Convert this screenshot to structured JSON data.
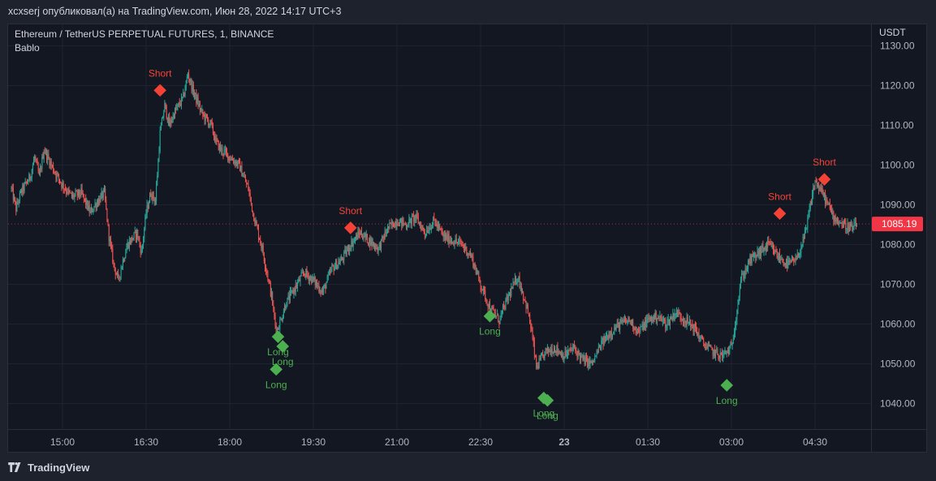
{
  "header": {
    "publish_line": "xcxserj опубликовал(а) на TradingView.com, Июн 28, 2022 14:17 UTC+3"
  },
  "legend": {
    "symbol": "Ethereum / TetherUS PERPETUAL FUTURES, 1, BINANCE",
    "indicator": "Bablo"
  },
  "footer": {
    "brand": "TradingView"
  },
  "colors": {
    "up": "#26a69a",
    "down": "#ef5350",
    "long": "#4caf50",
    "short": "#f44336",
    "price_tag": "#f23645"
  },
  "chart_data": {
    "type": "candlestick",
    "ylabel": "USDT",
    "ylim": [
      1033,
      1131
    ],
    "y_ticks": [
      "1130.00",
      "1120.00",
      "1110.00",
      "1100.00",
      "1090.00",
      "1080.00",
      "1070.00",
      "1060.00",
      "1050.00",
      "1040.00"
    ],
    "x_ticks": [
      "15:00",
      "16:30",
      "18:00",
      "19:30",
      "21:00",
      "22:30",
      "23",
      "01:30",
      "03:00",
      "04:30"
    ],
    "last_price": "1085.19",
    "grid": true,
    "price_path": [
      [
        "14:05",
        1094
      ],
      [
        "14:10",
        1089
      ],
      [
        "14:15",
        1093
      ],
      [
        "14:25",
        1097
      ],
      [
        "14:30",
        1102
      ],
      [
        "14:35",
        1097
      ],
      [
        "14:40",
        1104
      ],
      [
        "14:50",
        1099
      ],
      [
        "15:00",
        1095
      ],
      [
        "15:10",
        1092
      ],
      [
        "15:20",
        1093
      ],
      [
        "15:30",
        1088
      ],
      [
        "15:35",
        1090
      ],
      [
        "15:45",
        1093
      ],
      [
        "15:50",
        1082
      ],
      [
        "15:55",
        1075
      ],
      [
        "16:00",
        1071
      ],
      [
        "16:05",
        1076
      ],
      [
        "16:10",
        1080
      ],
      [
        "16:20",
        1083
      ],
      [
        "16:25",
        1078
      ],
      [
        "16:30",
        1088
      ],
      [
        "16:35",
        1093
      ],
      [
        "16:40",
        1091
      ],
      [
        "16:45",
        1108
      ],
      [
        "16:50",
        1115
      ],
      [
        "16:55",
        1110
      ],
      [
        "17:00",
        1113
      ],
      [
        "17:10",
        1117
      ],
      [
        "17:15",
        1123
      ],
      [
        "17:20",
        1119
      ],
      [
        "17:25",
        1116
      ],
      [
        "17:30",
        1113
      ],
      [
        "17:40",
        1110
      ],
      [
        "17:45",
        1106
      ],
      [
        "17:50",
        1104
      ],
      [
        "18:00",
        1102
      ],
      [
        "18:10",
        1100
      ],
      [
        "18:20",
        1094
      ],
      [
        "18:25",
        1088
      ],
      [
        "18:35",
        1079
      ],
      [
        "18:45",
        1067
      ],
      [
        "18:50",
        1058
      ],
      [
        "18:55",
        1061
      ],
      [
        "19:00",
        1065
      ],
      [
        "19:10",
        1069
      ],
      [
        "19:20",
        1073
      ],
      [
        "19:30",
        1071
      ],
      [
        "19:40",
        1068
      ],
      [
        "19:50",
        1074
      ],
      [
        "20:00",
        1076
      ],
      [
        "20:10",
        1080
      ],
      [
        "20:20",
        1083
      ],
      [
        "20:30",
        1081
      ],
      [
        "20:40",
        1079
      ],
      [
        "20:50",
        1084
      ],
      [
        "21:00",
        1086
      ],
      [
        "21:10",
        1085
      ],
      [
        "21:20",
        1087
      ],
      [
        "21:30",
        1083
      ],
      [
        "21:40",
        1086
      ],
      [
        "21:50",
        1082
      ],
      [
        "22:00",
        1081
      ],
      [
        "22:10",
        1080
      ],
      [
        "22:20",
        1077
      ],
      [
        "22:30",
        1070
      ],
      [
        "22:40",
        1064
      ],
      [
        "22:50",
        1061
      ],
      [
        "23:00",
        1067
      ],
      [
        "23:10",
        1072
      ],
      [
        "23:20",
        1064
      ],
      [
        "23:25",
        1058
      ],
      [
        "23:30",
        1049
      ],
      [
        "23:40",
        1053
      ],
      [
        "23:50",
        1054
      ],
      [
        "00:00",
        1052
      ],
      [
        "00:10",
        1054
      ],
      [
        "00:20",
        1051
      ],
      [
        "00:30",
        1050
      ],
      [
        "00:40",
        1055
      ],
      [
        "00:50",
        1058
      ],
      [
        "01:00",
        1060
      ],
      [
        "01:10",
        1061
      ],
      [
        "01:20",
        1058
      ],
      [
        "01:30",
        1061
      ],
      [
        "01:40",
        1062
      ],
      [
        "01:50",
        1060
      ],
      [
        "02:00",
        1063
      ],
      [
        "02:10",
        1061
      ],
      [
        "02:20",
        1059
      ],
      [
        "02:30",
        1055
      ],
      [
        "02:40",
        1053
      ],
      [
        "02:50",
        1052
      ],
      [
        "03:00",
        1054
      ],
      [
        "03:05",
        1062
      ],
      [
        "03:10",
        1071
      ],
      [
        "03:20",
        1076
      ],
      [
        "03:30",
        1078
      ],
      [
        "03:40",
        1080
      ],
      [
        "03:50",
        1077
      ],
      [
        "04:00",
        1075
      ],
      [
        "04:10",
        1076
      ],
      [
        "04:20",
        1083
      ],
      [
        "04:25",
        1090
      ],
      [
        "04:30",
        1096
      ],
      [
        "04:40",
        1092
      ],
      [
        "04:50",
        1087
      ],
      [
        "05:00",
        1085
      ],
      [
        "05:10",
        1084
      ],
      [
        "05:15",
        1085
      ]
    ],
    "signals": [
      {
        "time": "16:45",
        "price": 1118.8,
        "label": "Short",
        "type": "short"
      },
      {
        "time": "18:52",
        "price": 1056.8,
        "label": "Long",
        "type": "long"
      },
      {
        "time": "18:57",
        "price": 1054.4,
        "label": "Long",
        "type": "long"
      },
      {
        "time": "18:50",
        "price": 1048.6,
        "label": "Long",
        "type": "long"
      },
      {
        "time": "20:10",
        "price": 1084.2,
        "label": "Short",
        "type": "short"
      },
      {
        "time": "22:40",
        "price": 1062.0,
        "label": "Long",
        "type": "long"
      },
      {
        "time": "23:38",
        "price": 1041.4,
        "label": "Long",
        "type": "long"
      },
      {
        "time": "23:42",
        "price": 1040.8,
        "label": "Long",
        "type": "long"
      },
      {
        "time": "02:55",
        "price": 1044.6,
        "label": "Long",
        "type": "long"
      },
      {
        "time": "03:52",
        "price": 1087.8,
        "label": "Short",
        "type": "short"
      },
      {
        "time": "04:40",
        "price": 1096.4,
        "label": "Short",
        "type": "short"
      }
    ]
  }
}
